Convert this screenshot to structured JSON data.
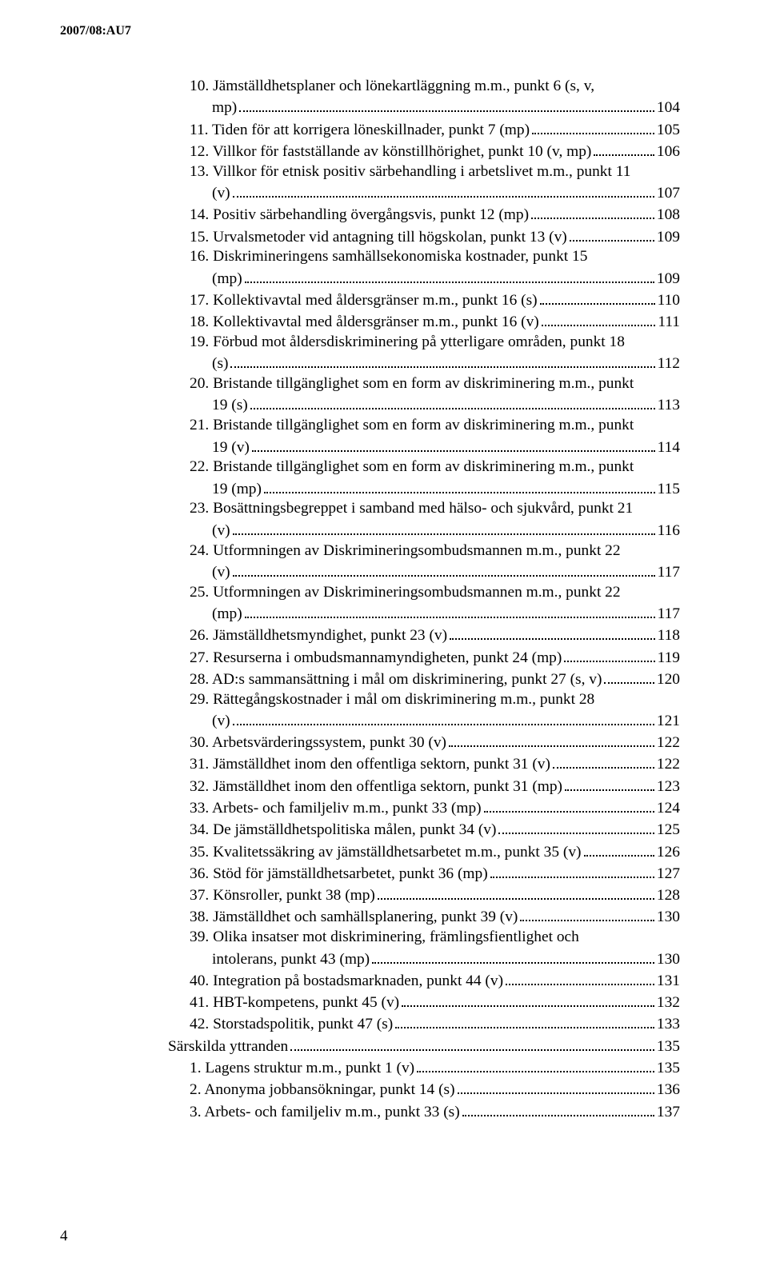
{
  "running_header": "2007/08:AU7",
  "page_number": "4",
  "toc": [
    {
      "indent": 1,
      "lines": [
        "10. Jämställdhetsplaner och lönekartläggning m.m., punkt 6 (s, v,",
        "mp)"
      ],
      "page": "104"
    },
    {
      "indent": 1,
      "lines": [
        "11. Tiden för att korrigera löneskillnader, punkt 7 (mp)"
      ],
      "page": "105"
    },
    {
      "indent": 1,
      "lines": [
        "12. Villkor för fastställande av könstillhörighet, punkt 10 (v, mp)"
      ],
      "page": "106"
    },
    {
      "indent": 1,
      "lines": [
        "13. Villkor för etnisk positiv särbehandling i arbetslivet m.m., punkt 11",
        "(v)"
      ],
      "page": "107"
    },
    {
      "indent": 1,
      "lines": [
        "14. Positiv särbehandling övergångsvis, punkt 12 (mp)"
      ],
      "page": "108"
    },
    {
      "indent": 1,
      "lines": [
        "15. Urvalsmetoder vid antagning till högskolan, punkt 13 (v)"
      ],
      "page": "109"
    },
    {
      "indent": 1,
      "lines": [
        "16. Diskrimineringens samhällsekonomiska kostnader, punkt 15",
        "(mp)"
      ],
      "page": "109"
    },
    {
      "indent": 1,
      "lines": [
        "17. Kollektivavtal med åldersgränser m.m., punkt 16 (s)"
      ],
      "page": "110"
    },
    {
      "indent": 1,
      "lines": [
        "18. Kollektivavtal med åldersgränser m.m., punkt 16 (v)"
      ],
      "page": "111"
    },
    {
      "indent": 1,
      "lines": [
        "19. Förbud mot åldersdiskriminering på ytterligare områden, punkt 18",
        "(s)"
      ],
      "page": "112"
    },
    {
      "indent": 1,
      "lines": [
        "20. Bristande tillgänglighet som en form av diskriminering m.m., punkt",
        "19 (s)"
      ],
      "page": "113"
    },
    {
      "indent": 1,
      "lines": [
        "21. Bristande tillgänglighet som en form av diskriminering m.m., punkt",
        "19 (v)"
      ],
      "page": "114"
    },
    {
      "indent": 1,
      "lines": [
        "22. Bristande tillgänglighet som en form av diskriminering m.m., punkt",
        "19 (mp)"
      ],
      "page": "115"
    },
    {
      "indent": 1,
      "lines": [
        "23. Bosättningsbegreppet i samband med hälso- och sjukvård, punkt 21",
        "(v)"
      ],
      "page": "116"
    },
    {
      "indent": 1,
      "lines": [
        "24. Utformningen av Diskrimineringsombudsmannen m.m., punkt 22",
        "(v)"
      ],
      "page": "117"
    },
    {
      "indent": 1,
      "lines": [
        "25. Utformningen av Diskrimineringsombudsmannen m.m., punkt 22",
        "(mp)"
      ],
      "page": "117"
    },
    {
      "indent": 1,
      "lines": [
        "26. Jämställdhetsmyndighet, punkt 23 (v)"
      ],
      "page": "118"
    },
    {
      "indent": 1,
      "lines": [
        "27. Resurserna i ombudsmannamyndigheten, punkt 24 (mp)"
      ],
      "page": "119"
    },
    {
      "indent": 1,
      "lines": [
        "28. AD:s sammansättning i mål om diskriminering, punkt 27 (s, v)"
      ],
      "page": "120"
    },
    {
      "indent": 1,
      "lines": [
        "29. Rättegångskostnader i mål om diskriminering m.m., punkt 28",
        "(v)"
      ],
      "page": "121"
    },
    {
      "indent": 1,
      "lines": [
        "30. Arbetsvärderingssystem, punkt 30 (v)"
      ],
      "page": "122"
    },
    {
      "indent": 1,
      "lines": [
        "31. Jämställdhet inom den offentliga sektorn, punkt 31 (v)"
      ],
      "page": "122"
    },
    {
      "indent": 1,
      "lines": [
        "32. Jämställdhet inom den offentliga sektorn, punkt 31 (mp)"
      ],
      "page": "123"
    },
    {
      "indent": 1,
      "lines": [
        "33. Arbets- och familjeliv m.m., punkt 33 (mp)"
      ],
      "page": "124"
    },
    {
      "indent": 1,
      "lines": [
        "34. De jämställdhetspolitiska målen, punkt 34 (v)"
      ],
      "page": "125"
    },
    {
      "indent": 1,
      "lines": [
        "35. Kvalitetssäkring av jämställdhetsarbetet m.m., punkt 35 (v)"
      ],
      "page": "126"
    },
    {
      "indent": 1,
      "lines": [
        "36. Stöd för jämställdhetsarbetet, punkt 36 (mp)"
      ],
      "page": "127"
    },
    {
      "indent": 1,
      "lines": [
        "37. Könsroller, punkt 38 (mp)"
      ],
      "page": "128"
    },
    {
      "indent": 1,
      "lines": [
        "38. Jämställdhet och samhällsplanering, punkt 39 (v)"
      ],
      "page": "130"
    },
    {
      "indent": 1,
      "lines": [
        "39. Olika insatser mot diskriminering, främlingsfientlighet och",
        "intolerans, punkt 43 (mp)"
      ],
      "page": "130"
    },
    {
      "indent": 1,
      "lines": [
        "40. Integration på bostadsmarknaden, punkt 44 (v)"
      ],
      "page": "131"
    },
    {
      "indent": 1,
      "lines": [
        "41. HBT-kompetens, punkt 45 (v)"
      ],
      "page": "132"
    },
    {
      "indent": 1,
      "lines": [
        "42. Storstadspolitik, punkt 47 (s)"
      ],
      "page": "133"
    },
    {
      "indent": 0,
      "lines": [
        "Särskilda yttranden"
      ],
      "page": "135"
    },
    {
      "indent": 1,
      "lines": [
        "1. Lagens struktur m.m., punkt 1 (v)"
      ],
      "page": "135"
    },
    {
      "indent": 1,
      "lines": [
        "2. Anonyma jobbansökningar, punkt 14 (s)"
      ],
      "page": "136"
    },
    {
      "indent": 1,
      "lines": [
        "3. Arbets- och familjeliv m.m., punkt 33 (s)"
      ],
      "page": "137"
    }
  ]
}
